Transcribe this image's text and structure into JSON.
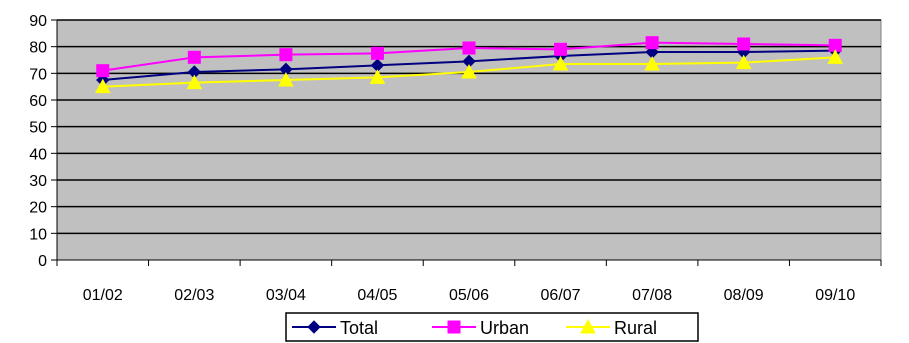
{
  "chart_data": {
    "type": "line",
    "categories": [
      "01/02",
      "02/03",
      "03/04",
      "04/05",
      "05/06",
      "06/07",
      "07/08",
      "08/09",
      "09/10"
    ],
    "series": [
      {
        "name": "Total",
        "values": [
          67.5,
          70.5,
          71.5,
          73,
          74.5,
          76.5,
          78,
          78,
          78.5
        ],
        "color": "#000080",
        "marker": "diamond"
      },
      {
        "name": "Urban",
        "values": [
          71,
          76,
          77,
          77.5,
          79.5,
          79,
          81.5,
          81,
          80.5
        ],
        "color": "#ff00ff",
        "marker": "square"
      },
      {
        "name": "Rural",
        "values": [
          65,
          66.5,
          67.5,
          68.5,
          70.5,
          73.5,
          73.5,
          74,
          76
        ],
        "color": "#ffff00",
        "marker": "triangle"
      }
    ],
    "ylim": [
      0,
      90
    ],
    "yticks": [
      0,
      10,
      20,
      30,
      40,
      50,
      60,
      70,
      80,
      90
    ],
    "plot_background": "#c0c0c0",
    "grid": true,
    "legend": "bottom"
  }
}
